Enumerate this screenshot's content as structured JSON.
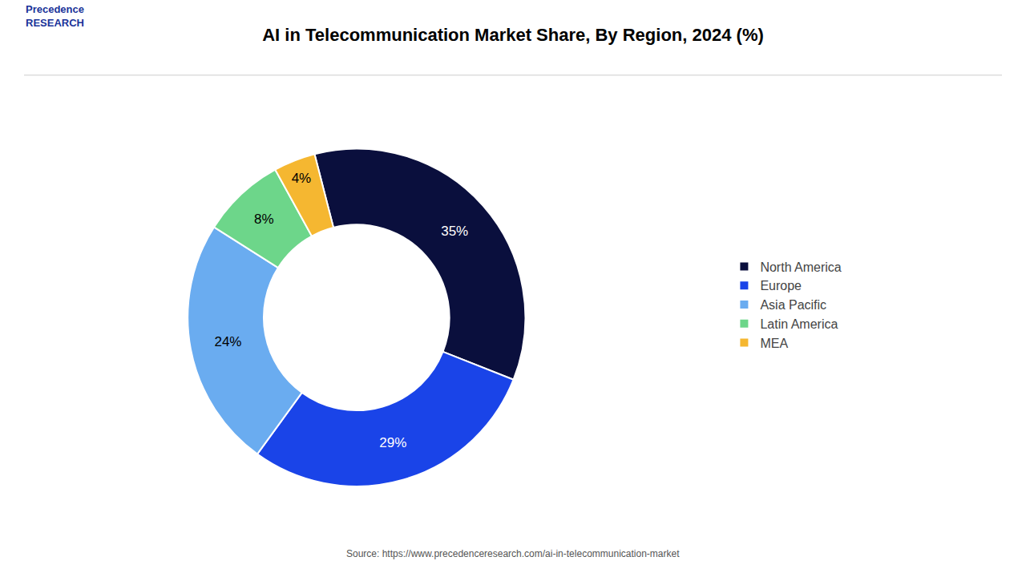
{
  "chart_data": {
    "type": "donut",
    "title": "AI in Telecommunication Market Share, By Region, 2024 (%)",
    "categories": [
      "North America",
      "Europe",
      "Asia Pacific",
      "Latin America",
      "MEA"
    ],
    "values": [
      35,
      29,
      24,
      8,
      4
    ],
    "value_labels": [
      "35%",
      "29%",
      "24%",
      "8%",
      "4%"
    ],
    "colors": [
      "#0a0f3d",
      "#1a44e8",
      "#6aacf0",
      "#6dd68a",
      "#f5b731"
    ],
    "data_labels": true,
    "legend": "right",
    "annotations": [
      "Source: https://www.precedenceresearch.com/ai-in-telecommunication-market",
      "Precedence\nRESEARCH"
    ]
  }
}
